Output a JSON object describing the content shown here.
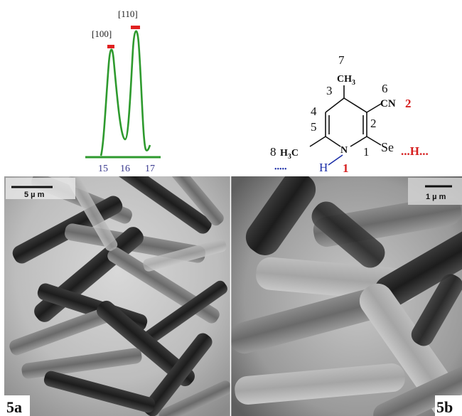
{
  "spectrum": {
    "peak_labels": [
      "[100]",
      "[110]"
    ],
    "tick_labels": [
      "15",
      "16",
      "17"
    ],
    "colors": {
      "curve": "#2e9a2e",
      "marker": "#e02020",
      "tick_text": "#3b3b8f"
    }
  },
  "molecule": {
    "labels": {
      "n7": "7",
      "ch3_top": "CH",
      "ch3_top_sub": "3",
      "n6": "6",
      "n3": "3",
      "cn": "CN",
      "cn_red": "2",
      "n2": "2",
      "n4": "4",
      "n5": "5",
      "n8": "8",
      "h3c": "H",
      "h3c_sub": "3",
      "h3c_c": "C",
      "n_atom": "N",
      "n1": "1",
      "se": "Se",
      "se_hbond": "...H...",
      "nh_h": "H",
      "nh_red": "1",
      "nh_dots": "•••••"
    },
    "colors": {
      "black": "#111111",
      "red": "#d62020",
      "blue": "#1c2fa8"
    }
  },
  "micrographs": [
    {
      "label": "5a",
      "scale": "5 µ m"
    },
    {
      "label": "5b",
      "scale": "1 µ m"
    }
  ]
}
